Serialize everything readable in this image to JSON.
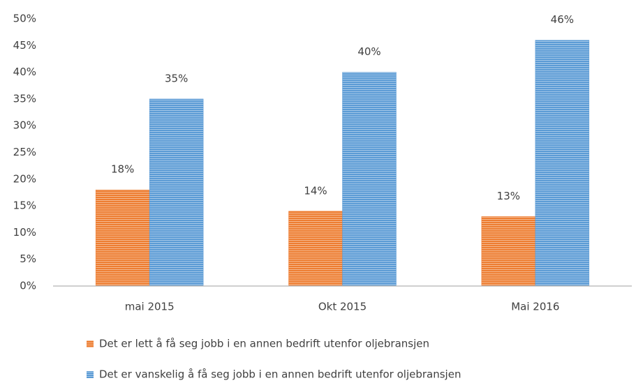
{
  "chart_data": {
    "type": "bar",
    "categories": [
      "mai 2015",
      "Okt 2015",
      "Mai 2016"
    ],
    "series": [
      {
        "name": "Det er lett å få seg jobb i en annen bedrift utenfor oljebransjen",
        "color": "#ed7d31",
        "values": [
          18,
          14,
          13
        ],
        "value_labels": [
          "18%",
          "14%",
          "13%"
        ]
      },
      {
        "name": "Det er vanskelig å få seg jobb i en annen bedrift utenfor oljebransjen",
        "color": "#5b9bd5",
        "values": [
          35,
          40,
          46
        ],
        "value_labels": [
          "35%",
          "40%",
          "46%"
        ]
      }
    ],
    "ylim": [
      0,
      50
    ],
    "yticks": [
      {
        "value": 0,
        "label": "0%"
      },
      {
        "value": 5,
        "label": "5%"
      },
      {
        "value": 10,
        "label": "10%"
      },
      {
        "value": 15,
        "label": "15%"
      },
      {
        "value": 20,
        "label": "20%"
      },
      {
        "value": 25,
        "label": "25%"
      },
      {
        "value": 30,
        "label": "30%"
      },
      {
        "value": 35,
        "label": "35%"
      },
      {
        "value": 40,
        "label": "40%"
      },
      {
        "value": 45,
        "label": "45%"
      },
      {
        "value": 50,
        "label": "50%"
      }
    ],
    "grid": false,
    "legend": "bottom"
  }
}
